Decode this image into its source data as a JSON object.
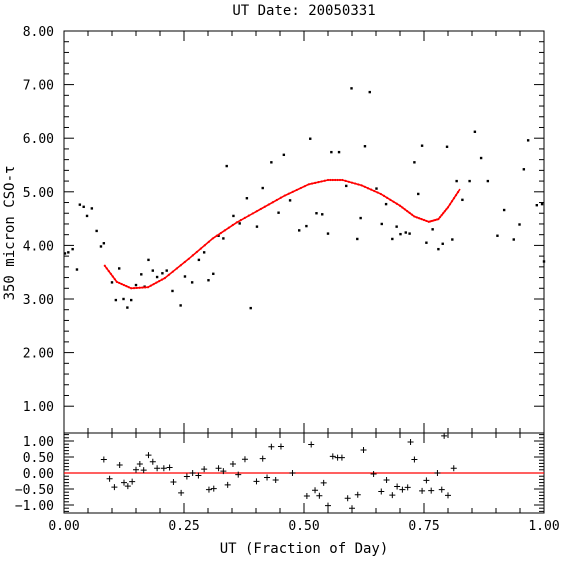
{
  "chart_data": {
    "type": "scatter",
    "title": "UT Date: 20050331",
    "xlabel": "UT (Fraction of Day)",
    "ylabel": "350 micron CSO-τ",
    "xlim": [
      0,
      1
    ],
    "grid": false,
    "xticks": [
      "0.00",
      "0.25",
      "0.50",
      "0.75",
      "1.00"
    ],
    "main": {
      "ylim": [
        0.5,
        8.0
      ],
      "yticks": [
        "1.00",
        "2.00",
        "3.00",
        "4.00",
        "5.00",
        "6.00",
        "7.00",
        "8.00"
      ],
      "series": [
        {
          "marker": "dot",
          "color": "#000000",
          "points": [
            [
              0.002,
              3.85
            ],
            [
              0.009,
              3.87
            ],
            [
              0.018,
              3.93
            ],
            [
              0.027,
              3.55
            ],
            [
              0.033,
              4.76
            ],
            [
              0.041,
              4.72
            ],
            [
              0.048,
              4.55
            ],
            [
              0.058,
              4.69
            ],
            [
              0.068,
              4.27
            ],
            [
              0.077,
              3.98
            ],
            [
              0.083,
              4.04
            ],
            [
              0.1,
              3.31
            ],
            [
              0.108,
              2.98
            ],
            [
              0.115,
              3.57
            ],
            [
              0.124,
              3.0
            ],
            [
              0.132,
              2.84
            ],
            [
              0.14,
              2.98
            ],
            [
              0.15,
              3.26
            ],
            [
              0.161,
              3.46
            ],
            [
              0.168,
              3.23
            ],
            [
              0.176,
              3.73
            ],
            [
              0.185,
              3.53
            ],
            [
              0.194,
              3.41
            ],
            [
              0.205,
              3.48
            ],
            [
              0.214,
              3.53
            ],
            [
              0.226,
              3.15
            ],
            [
              0.243,
              2.88
            ],
            [
              0.252,
              3.42
            ],
            [
              0.267,
              3.31
            ],
            [
              0.281,
              3.73
            ],
            [
              0.292,
              3.87
            ],
            [
              0.301,
              3.35
            ],
            [
              0.311,
              3.47
            ],
            [
              0.322,
              4.18
            ],
            [
              0.332,
              4.13
            ],
            [
              0.339,
              5.48
            ],
            [
              0.353,
              4.55
            ],
            [
              0.366,
              4.41
            ],
            [
              0.381,
              4.88
            ],
            [
              0.389,
              2.83
            ],
            [
              0.402,
              4.35
            ],
            [
              0.414,
              5.07
            ],
            [
              0.432,
              5.55
            ],
            [
              0.447,
              4.61
            ],
            [
              0.458,
              5.69
            ],
            [
              0.471,
              4.84
            ],
            [
              0.49,
              4.28
            ],
            [
              0.505,
              4.36
            ],
            [
              0.513,
              5.99
            ],
            [
              0.526,
              4.6
            ],
            [
              0.538,
              4.58
            ],
            [
              0.55,
              4.22
            ],
            [
              0.557,
              5.74
            ],
            [
              0.573,
              5.74
            ],
            [
              0.588,
              5.11
            ],
            [
              0.599,
              6.93
            ],
            [
              0.611,
              4.12
            ],
            [
              0.618,
              4.51
            ],
            [
              0.627,
              5.85
            ],
            [
              0.637,
              6.86
            ],
            [
              0.651,
              5.06
            ],
            [
              0.662,
              4.4
            ],
            [
              0.671,
              4.77
            ],
            [
              0.684,
              4.12
            ],
            [
              0.693,
              4.35
            ],
            [
              0.701,
              4.21
            ],
            [
              0.712,
              4.24
            ],
            [
              0.72,
              4.22
            ],
            [
              0.73,
              5.55
            ],
            [
              0.738,
              4.96
            ],
            [
              0.746,
              5.86
            ],
            [
              0.755,
              4.05
            ],
            [
              0.768,
              4.3
            ],
            [
              0.78,
              3.93
            ],
            [
              0.789,
              4.03
            ],
            [
              0.798,
              5.84
            ],
            [
              0.809,
              4.11
            ],
            [
              0.818,
              5.2
            ],
            [
              0.83,
              4.85
            ],
            [
              0.845,
              5.2
            ],
            [
              0.856,
              6.12
            ],
            [
              0.869,
              5.63
            ],
            [
              0.883,
              5.2
            ],
            [
              0.903,
              4.18
            ],
            [
              0.917,
              4.66
            ],
            [
              0.937,
              4.11
            ],
            [
              0.949,
              4.39
            ],
            [
              0.958,
              5.42
            ],
            [
              0.967,
              5.96
            ],
            [
              0.985,
              4.75
            ],
            [
              0.996,
              4.77
            ],
            [
              1.0,
              3.7
            ]
          ]
        },
        {
          "marker": "line",
          "color": "#ff0000",
          "points": [
            [
              0.085,
              3.62
            ],
            [
              0.11,
              3.32
            ],
            [
              0.14,
              3.2
            ],
            [
              0.175,
              3.22
            ],
            [
              0.21,
              3.39
            ],
            [
              0.26,
              3.75
            ],
            [
              0.31,
              4.13
            ],
            [
              0.36,
              4.43
            ],
            [
              0.41,
              4.68
            ],
            [
              0.46,
              4.93
            ],
            [
              0.51,
              5.14
            ],
            [
              0.55,
              5.22
            ],
            [
              0.58,
              5.22
            ],
            [
              0.62,
              5.12
            ],
            [
              0.66,
              4.96
            ],
            [
              0.7,
              4.74
            ],
            [
              0.73,
              4.54
            ],
            [
              0.76,
              4.44
            ],
            [
              0.78,
              4.49
            ],
            [
              0.8,
              4.71
            ],
            [
              0.825,
              5.05
            ]
          ]
        }
      ]
    },
    "residuals": {
      "ylim": [
        -1.25,
        1.25
      ],
      "yticks": [
        "1.00",
        "0.50",
        "0.00",
        "−0.50",
        "−1.00"
      ],
      "zero_line_color": "#ff0000",
      "marker": "plus",
      "points": [
        [
          0.083,
          0.42
        ],
        [
          0.095,
          -0.18
        ],
        [
          0.105,
          -0.44
        ],
        [
          0.116,
          0.25
        ],
        [
          0.125,
          -0.3
        ],
        [
          0.133,
          -0.41
        ],
        [
          0.142,
          -0.27
        ],
        [
          0.15,
          0.1
        ],
        [
          0.158,
          0.28
        ],
        [
          0.166,
          0.09
        ],
        [
          0.176,
          0.56
        ],
        [
          0.185,
          0.35
        ],
        [
          0.194,
          0.15
        ],
        [
          0.208,
          0.15
        ],
        [
          0.22,
          0.17
        ],
        [
          0.228,
          -0.28
        ],
        [
          0.244,
          -0.62
        ],
        [
          0.256,
          -0.11
        ],
        [
          0.268,
          0.0
        ],
        [
          0.28,
          -0.08
        ],
        [
          0.292,
          0.12
        ],
        [
          0.302,
          -0.52
        ],
        [
          0.312,
          -0.49
        ],
        [
          0.322,
          0.15
        ],
        [
          0.332,
          0.06
        ],
        [
          0.341,
          -0.37
        ],
        [
          0.352,
          0.28
        ],
        [
          0.363,
          -0.05
        ],
        [
          0.377,
          0.43
        ],
        [
          0.401,
          -0.26
        ],
        [
          0.414,
          0.45
        ],
        [
          0.423,
          -0.14
        ],
        [
          0.432,
          0.82
        ],
        [
          0.441,
          -0.22
        ],
        [
          0.452,
          0.83
        ],
        [
          0.476,
          0.0
        ],
        [
          0.506,
          -0.72
        ],
        [
          0.515,
          0.89
        ],
        [
          0.523,
          -0.54
        ],
        [
          0.532,
          -0.71
        ],
        [
          0.541,
          -0.31
        ],
        [
          0.55,
          -1.02
        ],
        [
          0.56,
          0.52
        ],
        [
          0.57,
          0.48
        ],
        [
          0.579,
          0.48
        ],
        [
          0.591,
          -0.79
        ],
        [
          0.6,
          -1.1
        ],
        [
          0.612,
          -0.68
        ],
        [
          0.624,
          0.72
        ],
        [
          0.645,
          -0.03
        ],
        [
          0.661,
          -0.58
        ],
        [
          0.672,
          -0.22
        ],
        [
          0.684,
          -0.69
        ],
        [
          0.694,
          -0.42
        ],
        [
          0.705,
          -0.52
        ],
        [
          0.716,
          -0.45
        ],
        [
          0.722,
          0.97
        ],
        [
          0.73,
          0.42
        ],
        [
          0.746,
          -0.56
        ],
        [
          0.755,
          -0.23
        ],
        [
          0.765,
          -0.55
        ],
        [
          0.778,
          0.0
        ],
        [
          0.787,
          -0.52
        ],
        [
          0.792,
          1.16
        ],
        [
          0.8,
          -0.7
        ],
        [
          0.812,
          0.15
        ]
      ]
    }
  }
}
